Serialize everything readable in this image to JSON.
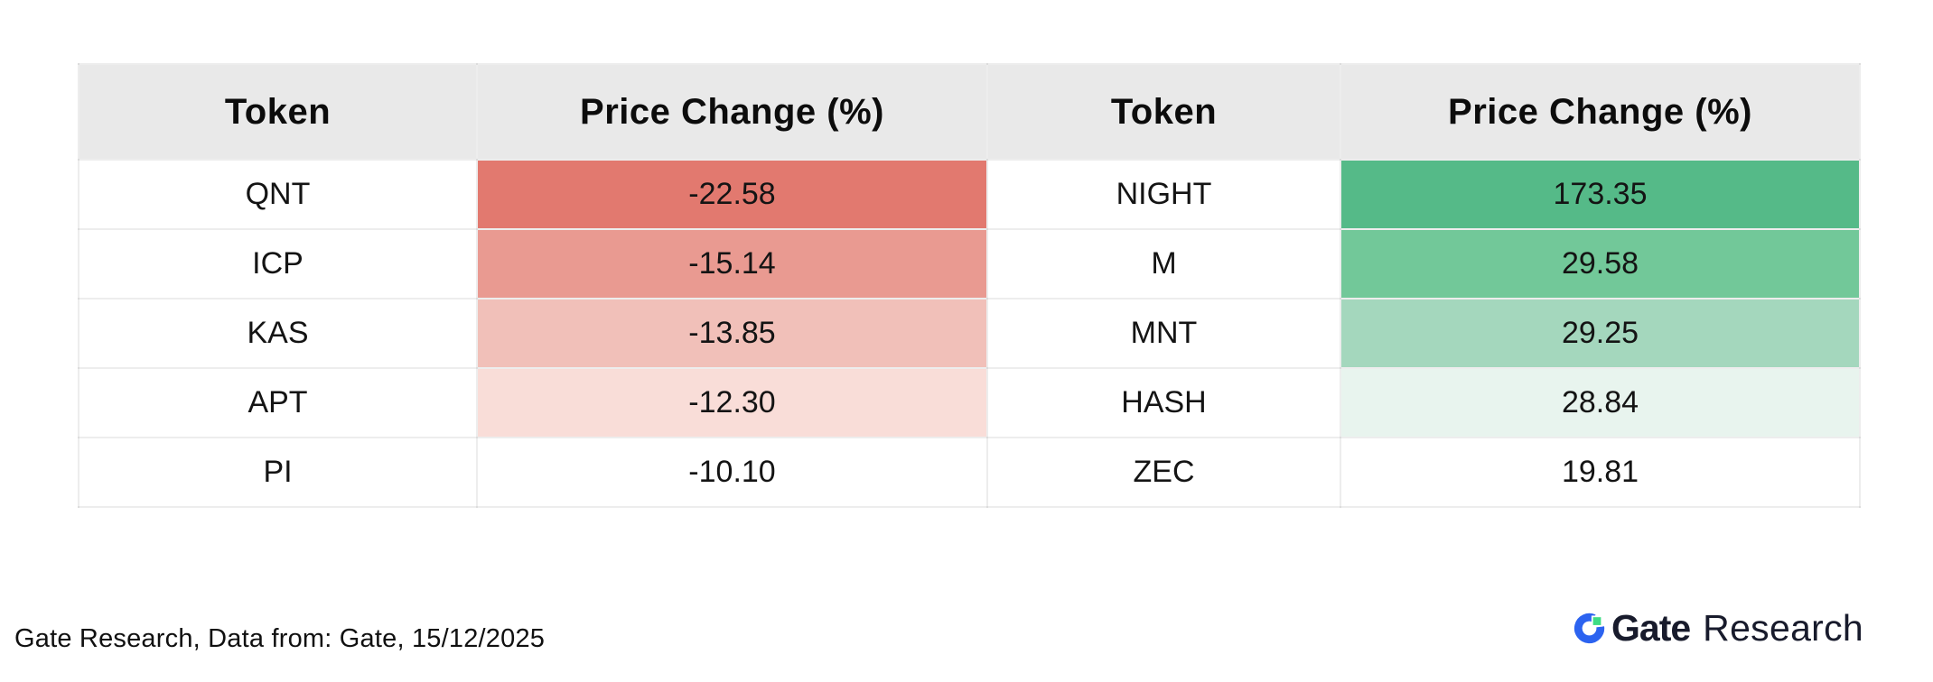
{
  "table": {
    "header_bg": "#e9e9e9",
    "headers": [
      "Token",
      "Price Change (%)",
      "Token",
      "Price Change (%)"
    ],
    "rows": [
      {
        "cells": [
          {
            "text": "QNT",
            "bg": "#ffffff"
          },
          {
            "text": "-22.58",
            "bg": "#e2796f"
          },
          {
            "text": "NIGHT",
            "bg": "#ffffff"
          },
          {
            "text": "173.35",
            "bg": "#55ba88"
          }
        ]
      },
      {
        "cells": [
          {
            "text": "ICP",
            "bg": "#ffffff"
          },
          {
            "text": "-15.14",
            "bg": "#e99a91"
          },
          {
            "text": "M",
            "bg": "#ffffff"
          },
          {
            "text": "29.58",
            "bg": "#72c899"
          }
        ]
      },
      {
        "cells": [
          {
            "text": "KAS",
            "bg": "#ffffff"
          },
          {
            "text": "-13.85",
            "bg": "#f1c0b9"
          },
          {
            "text": "MNT",
            "bg": "#ffffff"
          },
          {
            "text": "29.25",
            "bg": "#a4d7bd"
          }
        ]
      },
      {
        "cells": [
          {
            "text": "APT",
            "bg": "#ffffff"
          },
          {
            "text": "-12.30",
            "bg": "#f9ddd8"
          },
          {
            "text": "HASH",
            "bg": "#ffffff"
          },
          {
            "text": "28.84",
            "bg": "#e8f4ee"
          }
        ]
      },
      {
        "cells": [
          {
            "text": "PI",
            "bg": "#ffffff"
          },
          {
            "text": "-10.10",
            "bg": "#ffffff"
          },
          {
            "text": "ZEC",
            "bg": "#ffffff"
          },
          {
            "text": "19.81",
            "bg": "#ffffff"
          }
        ]
      }
    ]
  },
  "chart_data": {
    "type": "table",
    "title": "",
    "columns": [
      "Token",
      "Price Change (%)",
      "Token",
      "Price Change (%)"
    ],
    "rows": [
      [
        "QNT",
        -22.58,
        "NIGHT",
        173.35
      ],
      [
        "ICP",
        -15.14,
        "M",
        29.58
      ],
      [
        "KAS",
        -13.85,
        "MNT",
        29.25
      ],
      [
        "APT",
        -12.3,
        "HASH",
        28.84
      ],
      [
        "PI",
        -10.1,
        "ZEC",
        19.81
      ]
    ],
    "shading": {
      "negative_scale_hex": [
        "#e2796f",
        "#e99a91",
        "#f1c0b9",
        "#f9ddd8",
        "#ffffff"
      ],
      "positive_scale_hex": [
        "#55ba88",
        "#72c899",
        "#a4d7bd",
        "#e8f4ee",
        "#ffffff"
      ]
    }
  },
  "footer": {
    "source_text": "Gate Research, Data from: Gate, 15/12/2025",
    "logo": {
      "brand": "Gate",
      "suffix": "Research",
      "mark_blue": "#2c63f0",
      "mark_green": "#3ddc84",
      "text_color": "#181b2c"
    }
  }
}
